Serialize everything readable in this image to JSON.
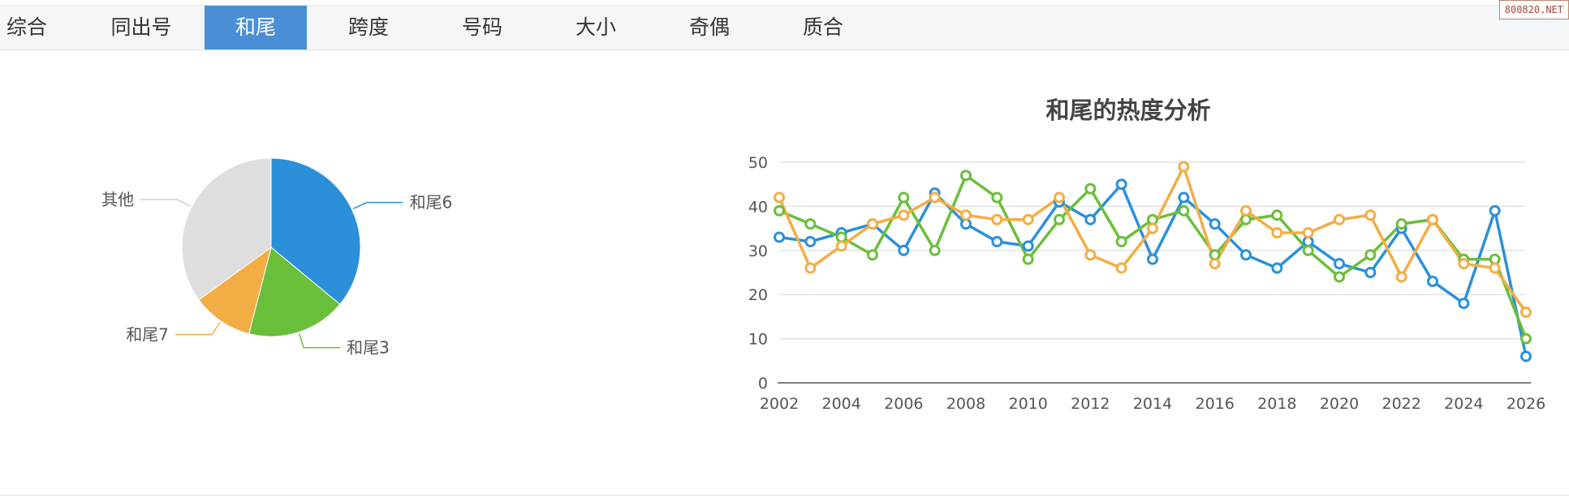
{
  "tabs": [
    {
      "label": "综合",
      "active": false
    },
    {
      "label": "同出号",
      "active": false
    },
    {
      "label": "和尾",
      "active": true
    },
    {
      "label": "跨度",
      "active": false
    },
    {
      "label": "号码",
      "active": false
    },
    {
      "label": "大小",
      "active": false
    },
    {
      "label": "奇偶",
      "active": false
    },
    {
      "label": "质合",
      "active": false
    }
  ],
  "watermark": "800820.NET",
  "colors": {
    "blue": "#2b90d9",
    "green": "#6abf3a",
    "orange": "#f3ad45",
    "gray": "#dedede"
  },
  "chart_data": [
    {
      "type": "pie",
      "title": "",
      "slices": [
        {
          "label": "和尾6",
          "value": 36,
          "color": "#2b90d9"
        },
        {
          "label": "和尾3",
          "value": 18,
          "color": "#6abf3a"
        },
        {
          "label": "和尾7",
          "value": 11,
          "color": "#f3ad45"
        },
        {
          "label": "其他",
          "value": 35,
          "color": "#dedede"
        }
      ]
    },
    {
      "type": "line",
      "title": "和尾的热度分析",
      "xlabel": "",
      "ylabel": "",
      "x": [
        2002,
        2003,
        2004,
        2005,
        2006,
        2007,
        2008,
        2009,
        2010,
        2011,
        2012,
        2013,
        2014,
        2015,
        2016,
        2017,
        2018,
        2019,
        2020,
        2021,
        2022,
        2023,
        2024,
        2025,
        2026
      ],
      "xticks": [
        2002,
        2004,
        2006,
        2008,
        2010,
        2012,
        2014,
        2016,
        2018,
        2020,
        2022,
        2024,
        2026
      ],
      "ylim": [
        0,
        50
      ],
      "yticks": [
        0,
        10,
        20,
        30,
        40,
        50
      ],
      "grid": true,
      "series": [
        {
          "color": "#2b90d9",
          "values": [
            33,
            32,
            34,
            36,
            30,
            43,
            36,
            32,
            31,
            41,
            37,
            45,
            28,
            42,
            36,
            29,
            26,
            32,
            27,
            25,
            35,
            23,
            18,
            39,
            6
          ]
        },
        {
          "color": "#6abf3a",
          "values": [
            39,
            36,
            33,
            29,
            42,
            30,
            47,
            42,
            28,
            37,
            44,
            32,
            37,
            39,
            29,
            37,
            38,
            30,
            24,
            29,
            36,
            37,
            28,
            28,
            10
          ]
        },
        {
          "color": "#f3ad45",
          "values": [
            42,
            26,
            31,
            36,
            38,
            42,
            38,
            37,
            37,
            42,
            29,
            26,
            35,
            49,
            27,
            39,
            34,
            34,
            37,
            38,
            24,
            37,
            27,
            26,
            16
          ]
        }
      ]
    }
  ]
}
